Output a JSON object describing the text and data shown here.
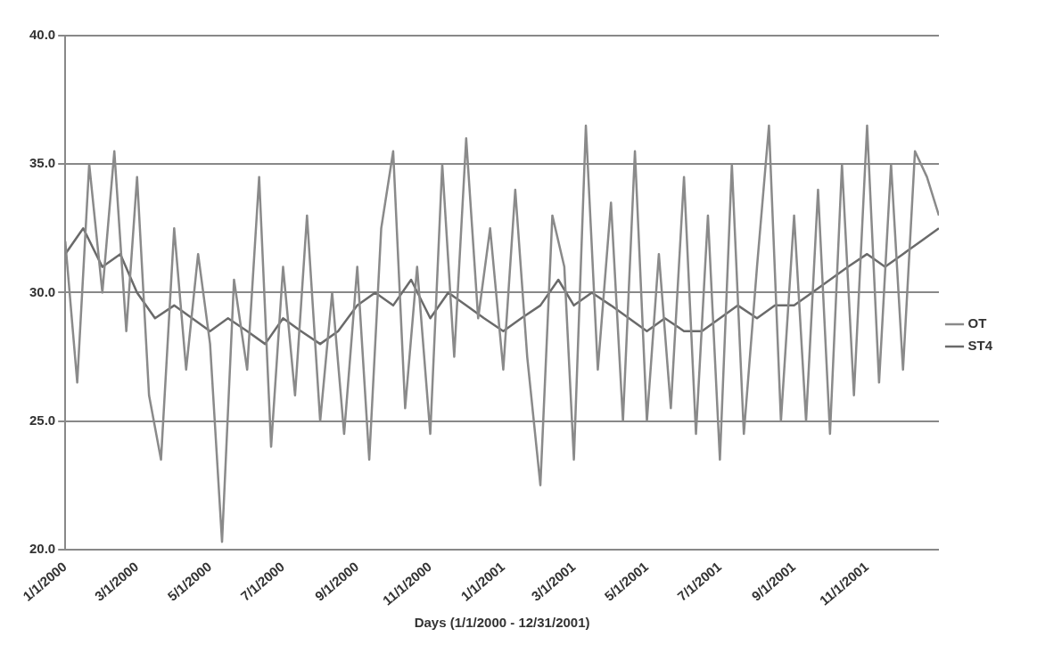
{
  "chart_data": {
    "type": "line",
    "xlabel": "Days (1/1/2000 - 12/31/2001)",
    "xlim": [
      "2000-01-01",
      "2001-12-31"
    ],
    "xticks": [
      {
        "value": "2000-01-01",
        "label": "1/1/2000"
      },
      {
        "value": "2000-03-01",
        "label": "3/1/2000"
      },
      {
        "value": "2000-05-01",
        "label": "5/1/2000"
      },
      {
        "value": "2000-07-01",
        "label": "7/1/2000"
      },
      {
        "value": "2000-09-01",
        "label": "9/1/2000"
      },
      {
        "value": "2000-11-01",
        "label": "11/1/2000"
      },
      {
        "value": "2001-01-01",
        "label": "1/1/2001"
      },
      {
        "value": "2001-03-01",
        "label": "3/1/2001"
      },
      {
        "value": "2001-05-01",
        "label": "5/1/2001"
      },
      {
        "value": "2001-07-01",
        "label": "7/1/2001"
      },
      {
        "value": "2001-09-01",
        "label": "9/1/2001"
      },
      {
        "value": "2001-11-01",
        "label": "11/1/2001"
      }
    ],
    "ylim": [
      20,
      40
    ],
    "yticks": [
      {
        "value": 20,
        "label": "20.0"
      },
      {
        "value": 25,
        "label": "25.0"
      },
      {
        "value": 30,
        "label": "30.0"
      },
      {
        "value": 35,
        "label": "35.0"
      },
      {
        "value": 40,
        "label": "40.0"
      }
    ],
    "grid": "y",
    "legend": "right",
    "marker": "none",
    "line_style": "solid",
    "series": [
      {
        "name": "OT",
        "color": "#8a8a8a",
        "x": [
          "2000-01-01",
          "2000-01-11",
          "2000-01-21",
          "2000-02-01",
          "2000-02-11",
          "2000-02-21",
          "2000-03-01",
          "2000-03-11",
          "2000-03-21",
          "2000-04-01",
          "2000-04-11",
          "2000-04-21",
          "2000-05-01",
          "2000-05-11",
          "2000-05-21",
          "2000-06-01",
          "2000-06-11",
          "2000-06-21",
          "2000-07-01",
          "2000-07-11",
          "2000-07-21",
          "2000-08-01",
          "2000-08-11",
          "2000-08-21",
          "2000-09-01",
          "2000-09-11",
          "2000-09-21",
          "2000-10-01",
          "2000-10-11",
          "2000-10-21",
          "2000-11-01",
          "2000-11-11",
          "2000-11-21",
          "2000-12-01",
          "2000-12-11",
          "2000-12-21",
          "2001-01-01",
          "2001-01-11",
          "2001-01-21",
          "2001-02-01",
          "2001-02-11",
          "2001-02-21",
          "2001-03-01",
          "2001-03-11",
          "2001-03-21",
          "2001-04-01",
          "2001-04-11",
          "2001-04-21",
          "2001-05-01",
          "2001-05-11",
          "2001-05-21",
          "2001-06-01",
          "2001-06-11",
          "2001-06-21",
          "2001-07-01",
          "2001-07-11",
          "2001-07-21",
          "2001-08-01",
          "2001-08-11",
          "2001-08-21",
          "2001-09-01",
          "2001-09-11",
          "2001-09-21",
          "2001-10-01",
          "2001-10-11",
          "2001-10-21",
          "2001-11-01",
          "2001-11-11",
          "2001-11-21",
          "2001-12-01",
          "2001-12-11",
          "2001-12-21",
          "2001-12-31"
        ],
        "values": [
          32,
          26.5,
          35,
          30,
          35.5,
          28.5,
          34.5,
          26,
          23.5,
          32.5,
          27,
          31.5,
          28,
          20.3,
          30.5,
          27,
          34.5,
          24,
          31,
          26,
          33,
          25,
          30,
          24.5,
          31,
          23.5,
          32.5,
          35.5,
          25.5,
          31,
          24.5,
          35,
          27.5,
          36,
          29,
          32.5,
          27,
          34,
          27.5,
          22.5,
          33,
          31,
          23.5,
          36.5,
          27,
          33.5,
          25,
          35.5,
          25,
          31.5,
          25.5,
          34.5,
          24.5,
          33,
          23.5,
          35,
          24.5,
          31,
          36.5,
          25,
          33,
          25,
          34,
          24.5,
          35,
          26,
          36.5,
          26.5,
          35,
          27,
          35.5,
          34.5,
          33
        ]
      },
      {
        "name": "ST4",
        "color": "#6a6a6a",
        "x": [
          "2000-01-01",
          "2000-01-16",
          "2000-02-01",
          "2000-02-16",
          "2000-03-01",
          "2000-03-16",
          "2000-04-01",
          "2000-04-16",
          "2000-05-01",
          "2000-05-16",
          "2000-06-01",
          "2000-06-16",
          "2000-07-01",
          "2000-07-16",
          "2000-08-01",
          "2000-08-16",
          "2000-09-01",
          "2000-09-16",
          "2000-10-01",
          "2000-10-16",
          "2000-11-01",
          "2000-11-16",
          "2000-12-01",
          "2000-12-16",
          "2001-01-01",
          "2001-01-16",
          "2001-02-01",
          "2001-02-16",
          "2001-03-01",
          "2001-03-16",
          "2001-04-01",
          "2001-04-16",
          "2001-05-01",
          "2001-05-16",
          "2001-06-01",
          "2001-06-16",
          "2001-07-01",
          "2001-07-16",
          "2001-08-01",
          "2001-08-16",
          "2001-09-01",
          "2001-09-16",
          "2001-10-01",
          "2001-10-16",
          "2001-11-01",
          "2001-11-16",
          "2001-12-01",
          "2001-12-16",
          "2001-12-31"
        ],
        "values": [
          31.5,
          32.5,
          31,
          31.5,
          30,
          29,
          29.5,
          29,
          28.5,
          29,
          28.5,
          28,
          29,
          28.5,
          28,
          28.5,
          29.5,
          30,
          29.5,
          30.5,
          29,
          30,
          29.5,
          29,
          28.5,
          29,
          29.5,
          30.5,
          29.5,
          30,
          29.5,
          29,
          28.5,
          29,
          28.5,
          28.5,
          29,
          29.5,
          29,
          29.5,
          29.5,
          30,
          30.5,
          31,
          31.5,
          31,
          31.5,
          32,
          32.5
        ]
      }
    ]
  }
}
